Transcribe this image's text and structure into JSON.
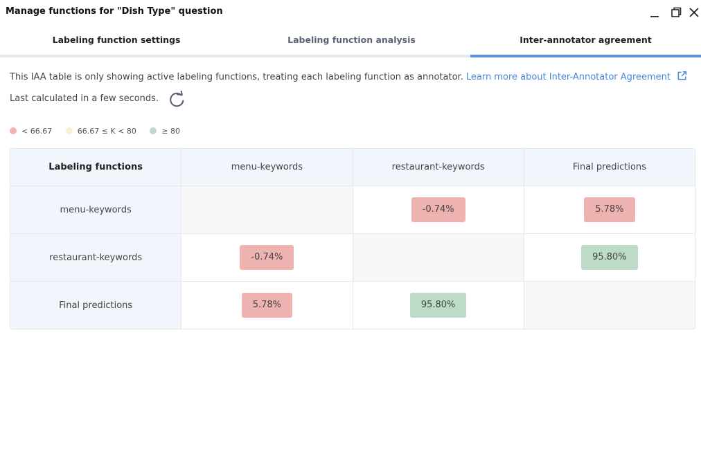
{
  "window": {
    "title": "Manage functions for \"Dish Type\" question"
  },
  "tabs": [
    {
      "label": "Labeling function settings",
      "active": false
    },
    {
      "label": "Labeling function analysis",
      "active": false
    },
    {
      "label": "Inter-annotator agreement",
      "active": true
    }
  ],
  "info": {
    "text": "This IAA table is only showing active labeling functions, treating each labeling function as annotator.",
    "link": "Learn more about Inter-Annotator Agreement"
  },
  "last_calculated": "Last calculated in a few seconds.",
  "legend": [
    {
      "label": "< 66.67",
      "color": "#eeb3b0"
    },
    {
      "label": "66.67 ≤ K < 80",
      "color": "#f7f1d0"
    },
    {
      "label": "≥ 80",
      "color": "#bcdcc8"
    }
  ],
  "colors": {
    "low": "#eeb3b0",
    "mid": "#f7f1d0",
    "high": "#bcdcc8",
    "accent": "#5b8fdf"
  },
  "table": {
    "corner": "Labeling functions",
    "columns": [
      "menu-keywords",
      "restaurant-keywords",
      "Final predictions"
    ],
    "rows": [
      {
        "label": "menu-keywords",
        "cells": [
          "",
          "-0.74%",
          "5.78%"
        ]
      },
      {
        "label": "restaurant-keywords",
        "cells": [
          "-0.74%",
          "",
          "95.80%"
        ]
      },
      {
        "label": "Final predictions",
        "cells": [
          "5.78%",
          "95.80%",
          ""
        ]
      }
    ]
  }
}
